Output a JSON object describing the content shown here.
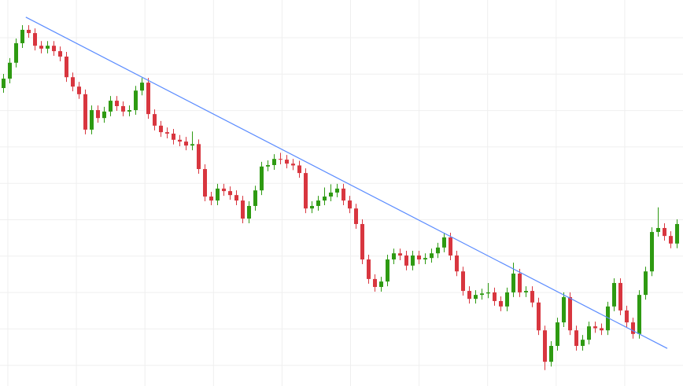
{
  "chart_data": {
    "type": "candlestick",
    "title": "",
    "xlabel": "",
    "ylabel": "",
    "axes_visible": false,
    "grid": true,
    "ylim": [
      0,
      100
    ],
    "colors": {
      "up": "#2e9a12",
      "down": "#d8363f",
      "trendline": "#5b8cff",
      "grid": "#efefef",
      "background": "#ffffff"
    },
    "candles": [
      [
        80,
        83.9,
        78.7,
        82.6
      ],
      [
        82.6,
        88.3,
        81.3,
        87
      ],
      [
        87,
        93.7,
        85.7,
        92.4
      ],
      [
        92.4,
        97.4,
        91.1,
        96.1
      ],
      [
        96.1,
        97.4,
        93.9,
        95.2
      ],
      [
        95.2,
        96.5,
        90.4,
        91.7
      ],
      [
        91.7,
        93,
        89.6,
        90.9
      ],
      [
        90.9,
        93,
        89.6,
        91.7
      ],
      [
        91.7,
        93,
        88.9,
        90.2
      ],
      [
        90.2,
        91.5,
        87.4,
        88.7
      ],
      [
        88.7,
        90,
        81.7,
        83
      ],
      [
        83,
        84.3,
        79.1,
        80.4
      ],
      [
        80.4,
        81.7,
        77,
        78.3
      ],
      [
        78.3,
        79.6,
        67.2,
        68.5
      ],
      [
        68.5,
        75.2,
        67.2,
        73.9
      ],
      [
        73.9,
        75.2,
        70.4,
        71.7
      ],
      [
        71.7,
        74.8,
        70.4,
        73.5
      ],
      [
        73.5,
        77.8,
        72.2,
        76.5
      ],
      [
        76.5,
        77.8,
        73.7,
        75
      ],
      [
        75,
        76.3,
        72.2,
        73.5
      ],
      [
        73.5,
        75.2,
        72.2,
        73.9
      ],
      [
        73.9,
        80.6,
        72.6,
        79.3
      ],
      [
        79.3,
        82.8,
        78,
        81.5
      ],
      [
        81.5,
        82.8,
        71.5,
        72.8
      ],
      [
        72.8,
        74.1,
        68.3,
        69.6
      ],
      [
        69.6,
        70.9,
        66.5,
        67.8
      ],
      [
        67.8,
        69.1,
        66.1,
        67.4
      ],
      [
        67.4,
        68.7,
        64.4,
        65.7
      ],
      [
        65.7,
        67,
        63.9,
        65.2
      ],
      [
        65.2,
        66.5,
        62.8,
        64.1
      ],
      [
        64.1,
        68,
        62.8,
        64.5
      ],
      [
        64.5,
        65.8,
        56.3,
        57.6
      ],
      [
        57.6,
        58.9,
        48.7,
        50
      ],
      [
        50,
        51.3,
        47.6,
        48.9
      ],
      [
        48.9,
        53.5,
        47.6,
        52.2
      ],
      [
        52.2,
        53.5,
        50.2,
        51.5
      ],
      [
        51.5,
        52.8,
        49.1,
        50.4
      ],
      [
        50.4,
        51.7,
        47.6,
        48.9
      ],
      [
        48.9,
        50.2,
        42.6,
        43.9
      ],
      [
        43.9,
        48.7,
        42.6,
        47.4
      ],
      [
        47.4,
        53,
        46.1,
        51.7
      ],
      [
        51.7,
        59.6,
        50.4,
        58.3
      ],
      [
        58.3,
        60,
        57,
        58.7
      ],
      [
        58.7,
        61.7,
        57.4,
        60.4
      ],
      [
        60.4,
        62.1,
        58.9,
        60.2
      ],
      [
        60.2,
        61.5,
        57.8,
        59.1
      ],
      [
        59.1,
        60.4,
        57.3,
        58.6
      ],
      [
        58.6,
        59.9,
        55.2,
        56.5
      ],
      [
        56.5,
        57.8,
        45.4,
        46.7
      ],
      [
        46.7,
        48.7,
        45.4,
        47.4
      ],
      [
        47.4,
        50.2,
        46.1,
        48.9
      ],
      [
        48.9,
        52.5,
        47.6,
        50
      ],
      [
        50,
        53.4,
        48.7,
        51.1
      ],
      [
        51.1,
        53.5,
        49.8,
        52.2
      ],
      [
        52.2,
        53.5,
        47.6,
        48.9
      ],
      [
        48.9,
        50.2,
        45.4,
        46.7
      ],
      [
        46.7,
        48,
        41.1,
        42.4
      ],
      [
        42.4,
        43.7,
        31.3,
        32.6
      ],
      [
        32.6,
        33.9,
        25.9,
        27.2
      ],
      [
        27.2,
        28.5,
        23.7,
        25
      ],
      [
        25,
        27.8,
        23.7,
        26.5
      ],
      [
        26.5,
        33.9,
        25.2,
        32.6
      ],
      [
        32.6,
        35.6,
        31.3,
        34.3
      ],
      [
        34.3,
        35.6,
        32.4,
        33.7
      ],
      [
        33.7,
        35,
        29.6,
        30.9
      ],
      [
        30.9,
        35,
        29.6,
        33.7
      ],
      [
        33.7,
        35,
        31.3,
        32.6
      ],
      [
        32.6,
        34.3,
        31.3,
        33
      ],
      [
        33,
        35.6,
        31.7,
        34.3
      ],
      [
        34.3,
        37.2,
        33,
        35.9
      ],
      [
        35.9,
        40,
        34.6,
        38.7
      ],
      [
        38.7,
        40,
        32.4,
        33.7
      ],
      [
        33.7,
        35,
        28,
        29.3
      ],
      [
        29.3,
        30.6,
        22.6,
        23.9
      ],
      [
        23.9,
        25.2,
        20.4,
        21.7
      ],
      [
        21.7,
        24.1,
        20.4,
        22.8
      ],
      [
        22.8,
        24.5,
        21.5,
        23.2
      ],
      [
        23.2,
        26.1,
        21.9,
        23.5
      ],
      [
        23.5,
        24.8,
        19.8,
        21.1
      ],
      [
        21.1,
        22.4,
        18.3,
        19.6
      ],
      [
        19.6,
        24.8,
        18.3,
        23.5
      ],
      [
        23.5,
        31.7,
        22.2,
        28.7
      ],
      [
        28.7,
        30,
        22.2,
        23.5
      ],
      [
        23.5,
        25.2,
        22.2,
        23.9
      ],
      [
        23.9,
        25.2,
        19.4,
        20.7
      ],
      [
        20.7,
        22,
        11.7,
        13
      ],
      [
        13,
        14.3,
        2,
        4.3
      ],
      [
        4.3,
        10,
        3,
        8.7
      ],
      [
        8.7,
        16.5,
        7.4,
        15.2
      ],
      [
        15.2,
        23.5,
        13.9,
        22.2
      ],
      [
        22.2,
        23.5,
        11.7,
        13
      ],
      [
        13,
        14.3,
        7.4,
        8.7
      ],
      [
        8.7,
        11.7,
        7.4,
        10.4
      ],
      [
        10.4,
        15.4,
        9.1,
        14.1
      ],
      [
        14.1,
        15.4,
        12.3,
        13.6
      ],
      [
        13.6,
        14.9,
        11.7,
        13
      ],
      [
        13,
        20.9,
        11.7,
        19.6
      ],
      [
        19.6,
        27.4,
        18.3,
        26.1
      ],
      [
        26.1,
        27.4,
        17.2,
        18.5
      ],
      [
        18.5,
        19.8,
        13.9,
        15.2
      ],
      [
        15.2,
        16.5,
        10.7,
        12
      ],
      [
        12,
        24.1,
        10.7,
        22.8
      ],
      [
        22.8,
        30.6,
        21.5,
        29.3
      ],
      [
        29.3,
        41.5,
        28,
        40.2
      ],
      [
        40.2,
        47,
        38.9,
        41.3
      ],
      [
        41.3,
        42.6,
        37.8,
        39.1
      ],
      [
        39.1,
        40.4,
        35.7,
        37
      ],
      [
        37,
        43.7,
        35.7,
        42.4
      ]
    ],
    "trendline": {
      "start": {
        "index": 3.6,
        "value": 99.6
      },
      "end": {
        "index": 105.5,
        "value": 8.0
      }
    }
  }
}
